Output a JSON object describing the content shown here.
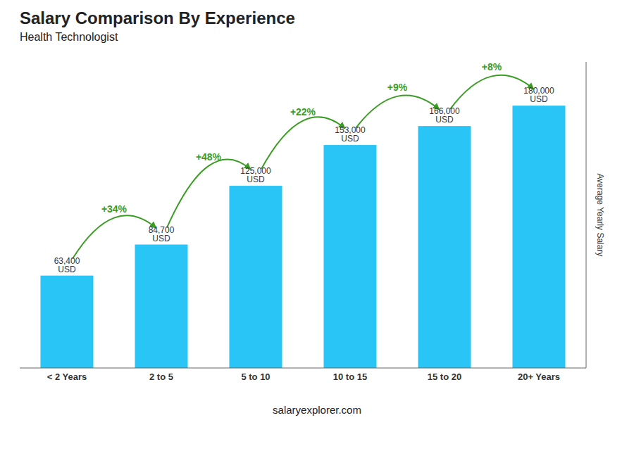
{
  "chart_data": {
    "type": "bar",
    "title": "Salary Comparison By Experience",
    "subtitle": "Health Technologist",
    "categories": [
      "< 2 Years",
      "2 to 5",
      "5 to 10",
      "10 to 15",
      "15 to 20",
      "20+ Years"
    ],
    "values": [
      63400,
      84700,
      125000,
      153000,
      166000,
      180000
    ],
    "value_labels": [
      "63,400 USD",
      "84,700 USD",
      "125,000 USD",
      "153,000 USD",
      "166,000 USD",
      "180,000 USD"
    ],
    "data_labels": true,
    "annotations": [
      "+34%",
      "+48%",
      "+22%",
      "+9%",
      "+8%"
    ],
    "ylabel": "Average Yearly Salary",
    "footer": "salaryexplorer.com",
    "color": "#29c5f6",
    "ylim": [
      0,
      210000
    ],
    "tick_labels": "x",
    "grid": false
  }
}
